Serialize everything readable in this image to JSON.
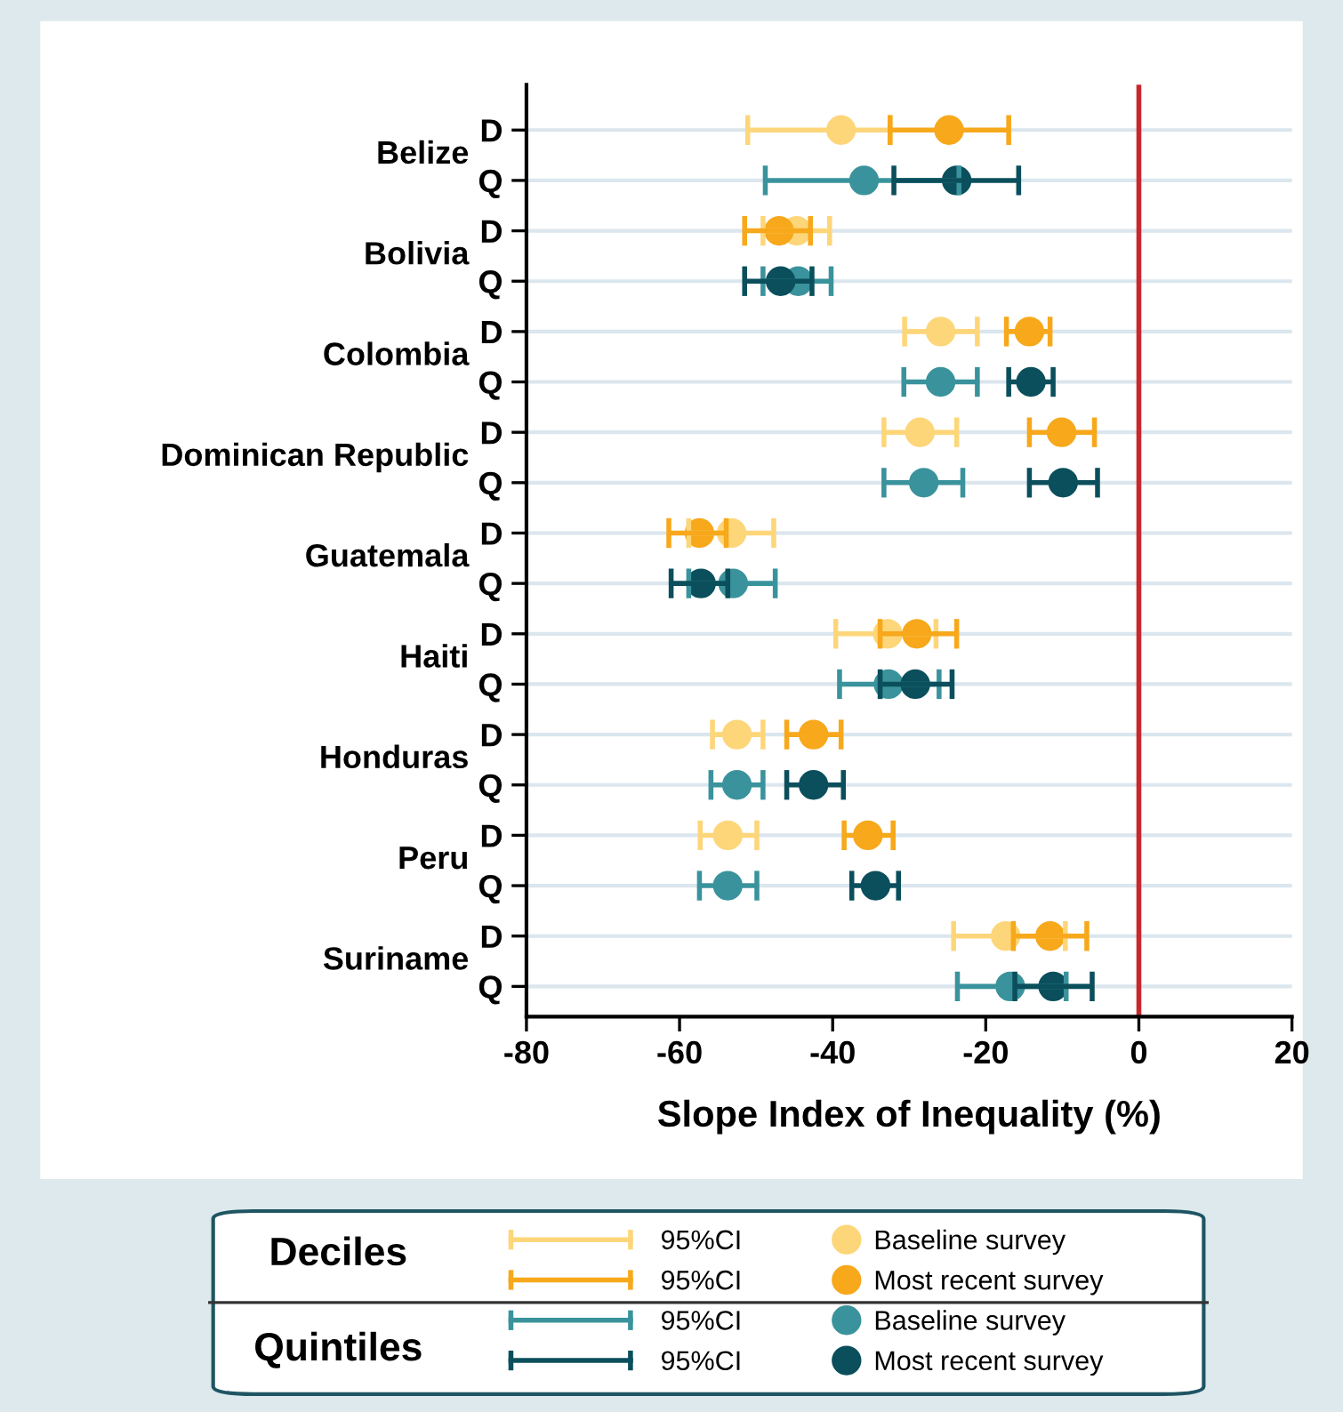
{
  "chart_data": {
    "type": "scatter",
    "orientation": "horizontal",
    "xlabel": "Slope Index of Inequality (%)",
    "categories": [
      "D",
      "Q",
      "D",
      "Q",
      "D",
      "Q",
      "D",
      "Q",
      "D",
      "Q",
      "D",
      "Q",
      "D",
      "Q",
      "D",
      "Q",
      "D",
      "Q"
    ],
    "xlim": [
      -80,
      20
    ],
    "xticks": [
      -80,
      -60,
      -40,
      -20,
      0,
      20
    ],
    "grid": "y",
    "legend": "bottom",
    "marker": "circle",
    "ref_lines": [
      {
        "axis": "x",
        "value": 0,
        "color": "#c8282d"
      }
    ],
    "annotations": [
      "Belize",
      "Bolivia",
      "Colombia",
      "Dominican Republic",
      "Guatemala",
      "Haiti",
      "Honduras",
      "Peru",
      "Suriname",
      "Deciles",
      "Quintiles",
      "95%CI",
      "95%CI",
      "95%CI",
      "95%CI"
    ],
    "series": [
      {
        "name": "Baseline survey",
        "color": "#fdd67a",
        "values": [
          -38.9,
          null,
          -44.7,
          null,
          -25.9,
          null,
          -28.6,
          null,
          -53.2,
          null,
          -32.8,
          null,
          -52.5,
          null,
          -53.7,
          null,
          -17.4,
          null
        ],
        "errors": [
          [
            -51.1,
            -32.5
          ],
          null,
          [
            -49.1,
            -40.4
          ],
          null,
          [
            -30.6,
            -21.1
          ],
          null,
          [
            -33.3,
            -23.8
          ],
          null,
          [
            -58.8,
            -47.7
          ],
          null,
          [
            -39.6,
            -26.5
          ],
          null,
          [
            -55.7,
            -49.1
          ],
          null,
          [
            -57.3,
            -49.9
          ],
          null,
          [
            -24.2,
            -9.6
          ],
          null
        ]
      },
      {
        "name": "Most recent survey",
        "color": "#f7a81b",
        "values": [
          -24.8,
          null,
          -47.0,
          null,
          -14.3,
          null,
          -10.1,
          null,
          -57.4,
          null,
          -29.0,
          null,
          -42.5,
          null,
          -35.4,
          null,
          -11.6,
          null
        ],
        "errors": [
          [
            -32.5,
            -17.0
          ],
          null,
          [
            -51.5,
            -42.9
          ],
          null,
          [
            -17.3,
            -11.6
          ],
          null,
          [
            -14.3,
            -5.8
          ],
          null,
          [
            -61.4,
            -53.9
          ],
          null,
          [
            -33.8,
            -23.8
          ],
          null,
          [
            -46.0,
            -38.9
          ],
          null,
          [
            -38.5,
            -32.1
          ],
          null,
          [
            -16.4,
            -6.8
          ],
          null
        ]
      },
      {
        "name": "Baseline survey",
        "color": "#3a939c",
        "values": [
          null,
          -35.9,
          null,
          -44.5,
          null,
          -25.9,
          null,
          -28.1,
          null,
          -53.0,
          null,
          -32.7,
          null,
          -52.5,
          null,
          -53.7,
          null,
          -16.8
        ],
        "errors": [
          null,
          [
            -48.8,
            -23.5
          ],
          null,
          [
            -49.1,
            -40.2
          ],
          null,
          [
            -30.7,
            -21.1
          ],
          null,
          [
            -33.3,
            -23.0
          ],
          null,
          [
            -58.8,
            -47.5
          ],
          null,
          [
            -39.1,
            -26.1
          ],
          null,
          [
            -55.9,
            -49.1
          ],
          null,
          [
            -57.4,
            -49.9
          ],
          null,
          [
            -23.7,
            -9.5
          ]
        ]
      },
      {
        "name": "Most recent survey",
        "color": "#0b4f5c",
        "values": [
          null,
          -23.8,
          null,
          -46.8,
          null,
          -14.1,
          null,
          -9.9,
          null,
          -57.2,
          null,
          -29.2,
          null,
          -42.5,
          null,
          -34.4,
          null,
          -11.2
        ],
        "errors": [
          null,
          [
            -32.0,
            -15.7
          ],
          null,
          [
            -51.5,
            -42.7
          ],
          null,
          [
            -17.0,
            -11.2
          ],
          null,
          [
            -14.3,
            -5.4
          ],
          null,
          [
            -61.1,
            -53.7
          ],
          null,
          [
            -33.8,
            -24.4
          ],
          null,
          [
            -46.0,
            -38.6
          ],
          null,
          [
            -37.5,
            -31.4
          ],
          null,
          [
            -16.2,
            -6.1
          ]
        ]
      }
    ]
  }
}
